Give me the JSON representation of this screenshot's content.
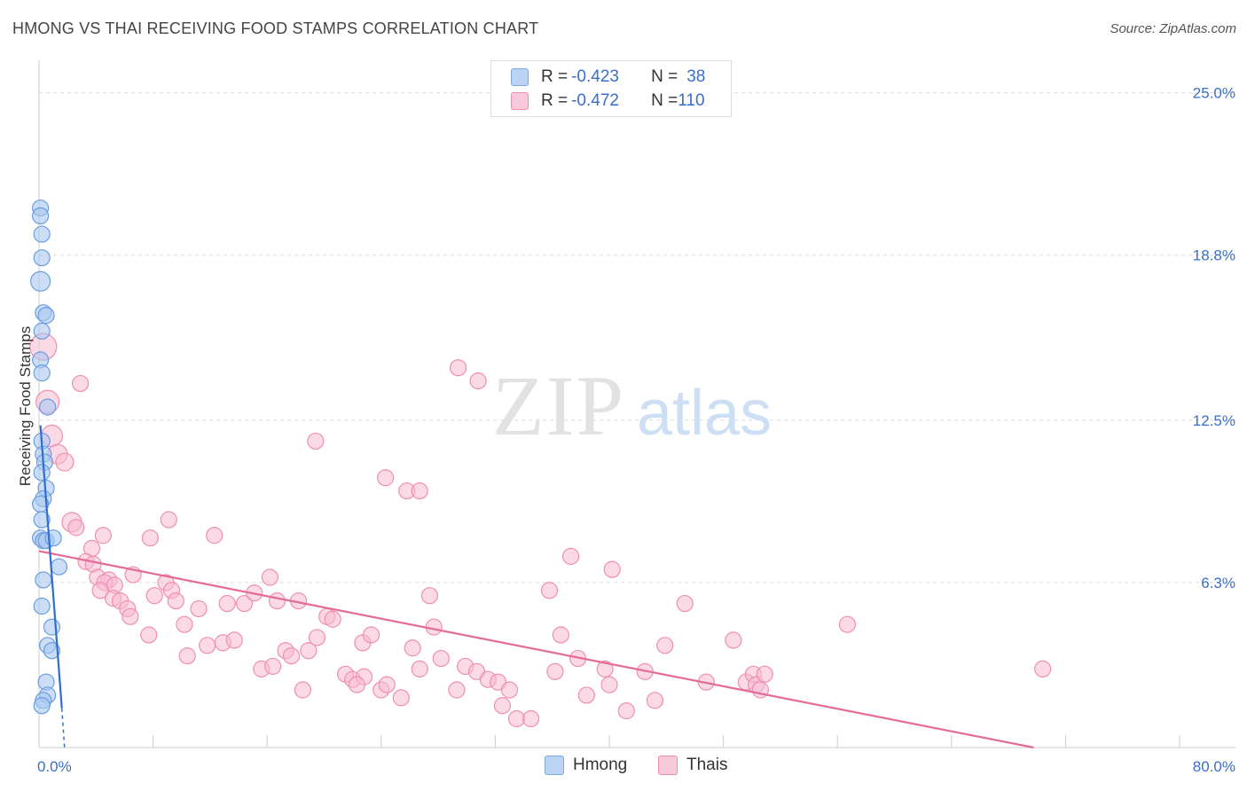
{
  "title": "HMONG VS THAI RECEIVING FOOD STAMPS CORRELATION CHART",
  "source": "Source: ZipAtlas.com",
  "watermark": {
    "zip": "ZIP",
    "atlas": "atlas"
  },
  "legend": {
    "rows": [
      {
        "r_label": "R = ",
        "r_value": "-0.423",
        "n_label": "N = ",
        "n_value": "38",
        "color": "#7aa9e6"
      },
      {
        "r_label": "R = ",
        "r_value": "-0.472",
        "n_label": "N = ",
        "n_value": "110",
        "color": "#f18cb0"
      }
    ]
  },
  "bottom_legend": {
    "hmong": "Hmong",
    "thais": "Thais"
  },
  "colors": {
    "hmong_fill": "#a9c8f0",
    "hmong_stroke": "#6b9de0",
    "hmong_line": "#2f6fd0",
    "thai_fill": "#f7bcd2",
    "thai_stroke": "#ee8fb2",
    "thai_line": "#e46a98"
  },
  "chart_data": {
    "type": "scatter",
    "title": "HMONG VS THAI RECEIVING FOOD STAMPS CORRELATION CHART",
    "xlabel": "",
    "ylabel": "Receiving Food Stamps",
    "xlim": [
      0,
      80
    ],
    "ylim": [
      0,
      25.9
    ],
    "x_tick_labels": [
      "0.0%",
      "80.0%"
    ],
    "y_ticks": [
      6.3,
      12.5,
      18.8,
      25.0
    ],
    "y_tick_labels": [
      "6.3%",
      "12.5%",
      "18.8%",
      "25.0%"
    ],
    "series": [
      {
        "name": "Hmong",
        "r": -0.423,
        "n": 38,
        "trend": {
          "x0": 0.1,
          "y0": 12.3,
          "x1": 1.6,
          "y1": 1.5,
          "dash_x1": 1.8,
          "dash_y1": -0.1
        },
        "points": [
          [
            0.1,
            20.6,
            9
          ],
          [
            0.1,
            20.3,
            9
          ],
          [
            0.2,
            19.6,
            9
          ],
          [
            0.2,
            18.7,
            9
          ],
          [
            0.1,
            17.8,
            11
          ],
          [
            0.3,
            16.6,
            9
          ],
          [
            0.5,
            16.5,
            9
          ],
          [
            0.2,
            15.9,
            9
          ],
          [
            0.1,
            14.8,
            9
          ],
          [
            0.2,
            14.3,
            9
          ],
          [
            0.6,
            13.0,
            9
          ],
          [
            0.2,
            11.7,
            9
          ],
          [
            0.3,
            11.2,
            9
          ],
          [
            0.4,
            10.9,
            9
          ],
          [
            0.2,
            10.5,
            9
          ],
          [
            0.5,
            9.9,
            9
          ],
          [
            0.3,
            9.5,
            9
          ],
          [
            0.1,
            9.3,
            9
          ],
          [
            0.2,
            8.7,
            9
          ],
          [
            0.1,
            8.0,
            9
          ],
          [
            0.3,
            7.9,
            9
          ],
          [
            0.5,
            7.9,
            9
          ],
          [
            1.0,
            8.0,
            9
          ],
          [
            1.4,
            6.9,
            9
          ],
          [
            0.3,
            6.4,
            9
          ],
          [
            0.2,
            5.4,
            9
          ],
          [
            0.9,
            4.6,
            9
          ],
          [
            0.6,
            3.9,
            9
          ],
          [
            0.9,
            3.7,
            9
          ],
          [
            0.5,
            2.5,
            9
          ],
          [
            0.6,
            2.0,
            9
          ],
          [
            0.3,
            1.8,
            9
          ],
          [
            0.2,
            1.6,
            9
          ]
        ]
      },
      {
        "name": "Thais",
        "r": -0.472,
        "n": 110,
        "trend": {
          "x0": 0,
          "y0": 7.5,
          "x1": 80,
          "y1": -1.1
        },
        "points": [
          [
            0.3,
            15.3,
            15
          ],
          [
            0.6,
            13.2,
            13
          ],
          [
            0.9,
            11.9,
            12
          ],
          [
            1.3,
            11.2,
            11
          ],
          [
            1.8,
            10.9,
            10
          ],
          [
            2.9,
            13.9,
            9
          ],
          [
            2.3,
            8.6,
            11
          ],
          [
            2.6,
            8.4,
            9
          ],
          [
            4.5,
            8.1,
            9
          ],
          [
            3.7,
            7.6,
            9
          ],
          [
            3.3,
            7.1,
            9
          ],
          [
            3.8,
            7.0,
            9
          ],
          [
            4.1,
            6.5,
            9
          ],
          [
            4.9,
            6.4,
            9
          ],
          [
            4.6,
            6.3,
            9
          ],
          [
            5.3,
            6.2,
            9
          ],
          [
            6.6,
            6.6,
            9
          ],
          [
            4.3,
            6.0,
            9
          ],
          [
            5.2,
            5.7,
            9
          ],
          [
            5.7,
            5.6,
            9
          ],
          [
            6.2,
            5.3,
            9
          ],
          [
            6.4,
            5.0,
            9
          ],
          [
            8.1,
            5.8,
            9
          ],
          [
            8.9,
            6.3,
            9
          ],
          [
            9.3,
            6.0,
            9
          ],
          [
            7.7,
            4.3,
            9
          ],
          [
            7.8,
            8.0,
            9
          ],
          [
            9.1,
            8.7,
            9
          ],
          [
            9.6,
            5.6,
            9
          ],
          [
            10.2,
            4.7,
            9
          ],
          [
            11.2,
            5.3,
            9
          ],
          [
            10.4,
            3.5,
            9
          ],
          [
            11.8,
            3.9,
            9
          ],
          [
            12.9,
            4.0,
            9
          ],
          [
            12.3,
            8.1,
            9
          ],
          [
            13.2,
            5.5,
            9
          ],
          [
            13.7,
            4.1,
            9
          ],
          [
            14.4,
            5.5,
            9
          ],
          [
            15.1,
            5.9,
            9
          ],
          [
            15.6,
            3.0,
            9
          ],
          [
            16.4,
            3.1,
            9
          ],
          [
            16.2,
            6.5,
            9
          ],
          [
            16.7,
            5.6,
            9
          ],
          [
            17.3,
            3.7,
            9
          ],
          [
            17.7,
            3.5,
            9
          ],
          [
            18.2,
            5.6,
            9
          ],
          [
            18.5,
            2.2,
            9
          ],
          [
            18.9,
            3.7,
            9
          ],
          [
            19.5,
            4.2,
            9
          ],
          [
            20.2,
            5.0,
            9
          ],
          [
            20.6,
            4.9,
            9
          ],
          [
            19.4,
            11.7,
            9
          ],
          [
            21.5,
            2.8,
            9
          ],
          [
            22.0,
            2.6,
            9
          ],
          [
            22.8,
            2.7,
            9
          ],
          [
            22.7,
            4.0,
            9
          ],
          [
            23.3,
            4.3,
            9
          ],
          [
            22.3,
            2.4,
            9
          ],
          [
            24.0,
            2.2,
            9
          ],
          [
            24.4,
            2.4,
            9
          ],
          [
            24.3,
            10.3,
            9
          ],
          [
            25.8,
            9.8,
            9
          ],
          [
            26.7,
            9.8,
            9
          ],
          [
            25.4,
            1.9,
            9
          ],
          [
            26.2,
            3.8,
            9
          ],
          [
            26.7,
            3.0,
            9
          ],
          [
            27.4,
            5.8,
            9
          ],
          [
            27.7,
            4.6,
            9
          ],
          [
            28.2,
            3.4,
            9
          ],
          [
            29.4,
            14.5,
            9
          ],
          [
            30.8,
            14.0,
            9
          ],
          [
            29.3,
            2.2,
            9
          ],
          [
            29.9,
            3.1,
            9
          ],
          [
            30.7,
            2.9,
            9
          ],
          [
            31.5,
            2.6,
            9
          ],
          [
            32.2,
            2.5,
            9
          ],
          [
            32.5,
            1.6,
            9
          ],
          [
            33.0,
            2.2,
            9
          ],
          [
            33.5,
            1.1,
            9
          ],
          [
            34.5,
            1.1,
            9
          ],
          [
            35.8,
            6.0,
            9
          ],
          [
            36.2,
            2.9,
            9
          ],
          [
            36.6,
            4.3,
            9
          ],
          [
            37.3,
            7.3,
            9
          ],
          [
            37.8,
            3.4,
            9
          ],
          [
            38.4,
            2.0,
            9
          ],
          [
            39.7,
            3.0,
            9
          ],
          [
            40.0,
            2.4,
            9
          ],
          [
            40.2,
            6.8,
            9
          ],
          [
            41.2,
            1.4,
            9
          ],
          [
            42.5,
            2.9,
            9
          ],
          [
            43.2,
            1.8,
            9
          ],
          [
            43.9,
            3.9,
            9
          ],
          [
            45.3,
            5.5,
            9
          ],
          [
            46.8,
            2.5,
            9
          ],
          [
            48.7,
            4.1,
            9
          ],
          [
            49.6,
            2.5,
            9
          ],
          [
            50.1,
            2.8,
            9
          ],
          [
            50.3,
            2.4,
            9
          ],
          [
            50.6,
            2.2,
            9
          ],
          [
            50.9,
            2.8,
            9
          ],
          [
            56.7,
            4.7,
            9
          ],
          [
            70.4,
            3.0,
            9
          ]
        ]
      }
    ]
  }
}
